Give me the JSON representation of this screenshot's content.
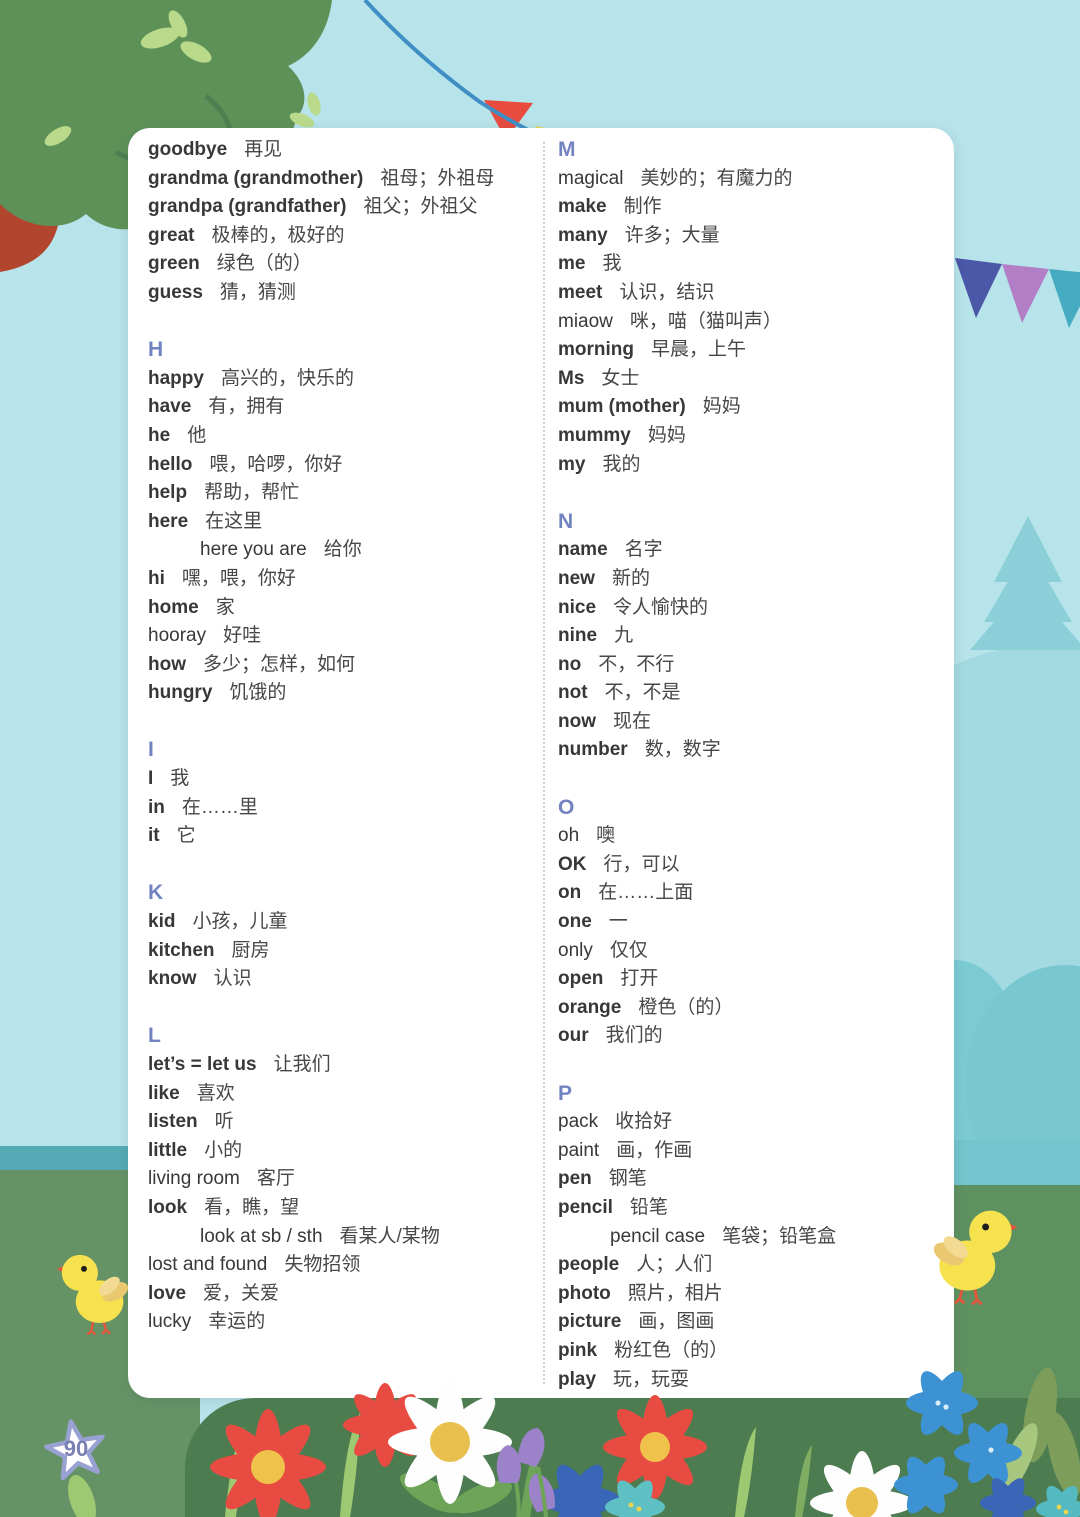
{
  "page": {
    "number": "90"
  },
  "palette": {
    "sky": "#b7e3ea",
    "card": "#ffffff",
    "letter": "#7283c1",
    "word": "#383838",
    "definition": "#474747",
    "grass_left": "#669366",
    "grass_right": "#5e9160",
    "band": "#4d7c50",
    "teal_strip": "#54aab4",
    "star_number": "#7b80b2"
  },
  "decorations": [
    "tree",
    "bunting-flags",
    "pine-tree-hill",
    "chick-left",
    "chick-right",
    "flower-meadow",
    "page-number-star"
  ],
  "glossary": {
    "columns": [
      {
        "sections": [
          {
            "letter": "",
            "entries": [
              {
                "word": "goodbye",
                "def": "再见",
                "bold": true,
                "indent": false
              },
              {
                "word": "grandma (grandmother)",
                "def": "祖母；外祖母",
                "bold": true,
                "indent": false
              },
              {
                "word": "grandpa (grandfather)",
                "def": "祖父；外祖父",
                "bold": true,
                "indent": false
              },
              {
                "word": "great",
                "def": "极棒的，极好的",
                "bold": true,
                "indent": false
              },
              {
                "word": "green",
                "def": "绿色（的）",
                "bold": true,
                "indent": false
              },
              {
                "word": "guess",
                "def": "猜，猜测",
                "bold": true,
                "indent": false
              }
            ]
          },
          {
            "letter": "H",
            "entries": [
              {
                "word": "happy",
                "def": "高兴的，快乐的",
                "bold": true,
                "indent": false
              },
              {
                "word": "have",
                "def": "有，拥有",
                "bold": true,
                "indent": false
              },
              {
                "word": "he",
                "def": "他",
                "bold": true,
                "indent": false
              },
              {
                "word": "hello",
                "def": "喂，哈啰，你好",
                "bold": true,
                "indent": false
              },
              {
                "word": "help",
                "def": "帮助，帮忙",
                "bold": true,
                "indent": false
              },
              {
                "word": "here",
                "def": "在这里",
                "bold": true,
                "indent": false
              },
              {
                "word": "here you are",
                "def": "给你",
                "bold": false,
                "indent": true
              },
              {
                "word": "hi",
                "def": "嘿，喂，你好",
                "bold": true,
                "indent": false
              },
              {
                "word": "home",
                "def": "家",
                "bold": true,
                "indent": false
              },
              {
                "word": "hooray",
                "def": "好哇",
                "bold": false,
                "indent": false
              },
              {
                "word": "how",
                "def": "多少；怎样，如何",
                "bold": true,
                "indent": false
              },
              {
                "word": "hungry",
                "def": "饥饿的",
                "bold": true,
                "indent": false
              }
            ]
          },
          {
            "letter": "I",
            "entries": [
              {
                "word": "I",
                "def": "我",
                "bold": true,
                "indent": false
              },
              {
                "word": "in",
                "def": "在……里",
                "bold": true,
                "indent": false
              },
              {
                "word": "it",
                "def": "它",
                "bold": true,
                "indent": false
              }
            ]
          },
          {
            "letter": "K",
            "entries": [
              {
                "word": "kid",
                "def": "小孩，儿童",
                "bold": true,
                "indent": false
              },
              {
                "word": "kitchen",
                "def": "厨房",
                "bold": true,
                "indent": false
              },
              {
                "word": "know",
                "def": "认识",
                "bold": true,
                "indent": false
              }
            ]
          },
          {
            "letter": "L",
            "entries": [
              {
                "word": "let’s = let us",
                "def": "让我们",
                "bold": true,
                "indent": false
              },
              {
                "word": "like",
                "def": "喜欢",
                "bold": true,
                "indent": false
              },
              {
                "word": "listen",
                "def": "听",
                "bold": true,
                "indent": false
              },
              {
                "word": "little",
                "def": "小的",
                "bold": true,
                "indent": false
              },
              {
                "word": "living room",
                "def": "客厅",
                "bold": false,
                "indent": false
              },
              {
                "word": "look",
                "def": "看，瞧，望",
                "bold": true,
                "indent": false
              },
              {
                "word": "look at sb / sth",
                "def": "看某人/某物",
                "bold": false,
                "indent": true
              },
              {
                "word": "lost and found",
                "def": "失物招领",
                "bold": false,
                "indent": false
              },
              {
                "word": "love",
                "def": "爱，关爱",
                "bold": true,
                "indent": false
              },
              {
                "word": "lucky",
                "def": "幸运的",
                "bold": false,
                "indent": false
              }
            ]
          }
        ]
      },
      {
        "sections": [
          {
            "letter": "M",
            "entries": [
              {
                "word": "magical",
                "def": "美妙的；有魔力的",
                "bold": false,
                "indent": false
              },
              {
                "word": "make",
                "def": "制作",
                "bold": true,
                "indent": false
              },
              {
                "word": "many",
                "def": "许多；大量",
                "bold": true,
                "indent": false
              },
              {
                "word": "me",
                "def": "我",
                "bold": true,
                "indent": false
              },
              {
                "word": "meet",
                "def": "认识，结识",
                "bold": true,
                "indent": false
              },
              {
                "word": "miaow",
                "def": "咪，喵（猫叫声）",
                "bold": false,
                "indent": false
              },
              {
                "word": "morning",
                "def": "早晨，上午",
                "bold": true,
                "indent": false
              },
              {
                "word": "Ms",
                "def": "女士",
                "bold": true,
                "indent": false
              },
              {
                "word": "mum (mother)",
                "def": "妈妈",
                "bold": true,
                "indent": false
              },
              {
                "word": "mummy",
                "def": "妈妈",
                "bold": true,
                "indent": false
              },
              {
                "word": "my",
                "def": "我的",
                "bold": true,
                "indent": false
              }
            ]
          },
          {
            "letter": "N",
            "entries": [
              {
                "word": "name",
                "def": "名字",
                "bold": true,
                "indent": false
              },
              {
                "word": "new",
                "def": "新的",
                "bold": true,
                "indent": false
              },
              {
                "word": "nice",
                "def": "令人愉快的",
                "bold": true,
                "indent": false
              },
              {
                "word": "nine",
                "def": "九",
                "bold": true,
                "indent": false
              },
              {
                "word": "no",
                "def": "不，不行",
                "bold": true,
                "indent": false
              },
              {
                "word": "not",
                "def": "不，不是",
                "bold": true,
                "indent": false
              },
              {
                "word": "now",
                "def": "现在",
                "bold": true,
                "indent": false
              },
              {
                "word": "number",
                "def": "数，数字",
                "bold": true,
                "indent": false
              }
            ]
          },
          {
            "letter": "O",
            "entries": [
              {
                "word": "oh",
                "def": "噢",
                "bold": false,
                "indent": false
              },
              {
                "word": "OK",
                "def": "行，可以",
                "bold": true,
                "indent": false
              },
              {
                "word": "on",
                "def": "在……上面",
                "bold": true,
                "indent": false
              },
              {
                "word": "one",
                "def": "一",
                "bold": true,
                "indent": false
              },
              {
                "word": "only",
                "def": "仅仅",
                "bold": false,
                "indent": false
              },
              {
                "word": "open",
                "def": "打开",
                "bold": true,
                "indent": false
              },
              {
                "word": "orange",
                "def": "橙色（的）",
                "bold": true,
                "indent": false
              },
              {
                "word": "our",
                "def": "我们的",
                "bold": true,
                "indent": false
              }
            ]
          },
          {
            "letter": "P",
            "entries": [
              {
                "word": "pack",
                "def": "收拾好",
                "bold": false,
                "indent": false
              },
              {
                "word": "paint",
                "def": "画，作画",
                "bold": false,
                "indent": false
              },
              {
                "word": "pen",
                "def": "钢笔",
                "bold": true,
                "indent": false
              },
              {
                "word": "pencil",
                "def": "铅笔",
                "bold": true,
                "indent": false
              },
              {
                "word": "pencil case",
                "def": "笔袋；铅笔盒",
                "bold": false,
                "indent": true
              },
              {
                "word": "people",
                "def": "人；人们",
                "bold": true,
                "indent": false
              },
              {
                "word": "photo",
                "def": "照片，相片",
                "bold": true,
                "indent": false
              },
              {
                "word": "picture",
                "def": "画，图画",
                "bold": true,
                "indent": false
              },
              {
                "word": "pink",
                "def": "粉红色（的）",
                "bold": true,
                "indent": false
              },
              {
                "word": "play",
                "def": "玩，玩耍",
                "bold": true,
                "indent": false
              }
            ]
          }
        ]
      }
    ]
  }
}
